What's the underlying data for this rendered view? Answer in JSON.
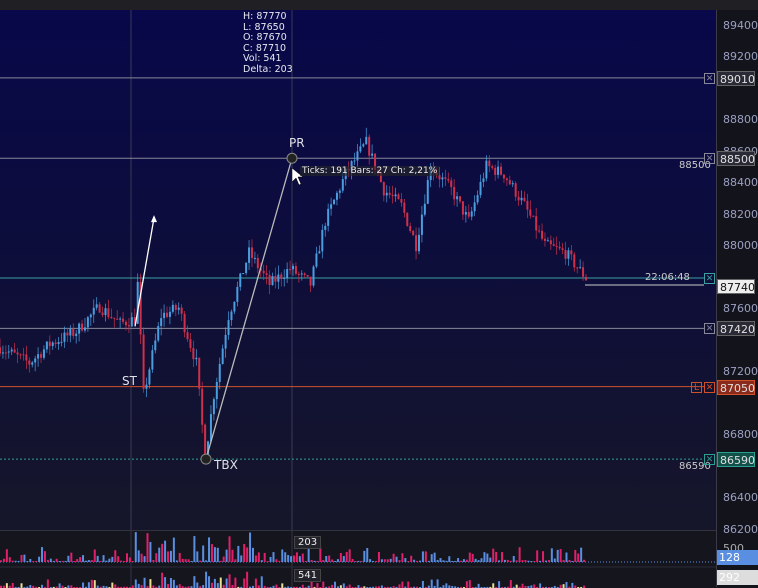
{
  "ohlc": {
    "h": "H: 87770",
    "l": "L: 87650",
    "o": "O: 87670",
    "c": "C: 87710",
    "vol": "Vol: 541",
    "delta": "Delta: 203"
  },
  "price_ticks": [
    "89400",
    "89200",
    "88800",
    "88600",
    "88400",
    "88200",
    "88000",
    "87600",
    "87200",
    "86800",
    "86400",
    "86200"
  ],
  "levels": [
    {
      "price": "89010",
      "color": "#888899",
      "style": "solid"
    },
    {
      "price": "88500",
      "color": "#888899",
      "style": "solid",
      "label": "88500"
    },
    {
      "price": "87740",
      "color": "#3aa0a0",
      "style": "solid",
      "label": "22:06:48",
      "current": true
    },
    {
      "price": "87420",
      "color": "#888899",
      "style": "solid"
    },
    {
      "price": "87050",
      "color": "#d0502a",
      "style": "solid",
      "limit": "L"
    },
    {
      "price": "86590",
      "color": "#2aa090",
      "style": "dotted",
      "label": "86590"
    }
  ],
  "annotations": {
    "pr": "PR",
    "st": "ST",
    "tbx": "TBX",
    "measure": "Ticks: 191  Bars: 27  Ch: 2,21%"
  },
  "volume": {
    "delta_tag": "203",
    "vol_tag": "541",
    "axis_max": "500",
    "delta_last": "128",
    "vol_last": "292"
  },
  "colors": {
    "up": "#4a9ee0",
    "down": "#d0304a",
    "vol_up": "#5a8ee0",
    "vol_down": "#e0206a"
  },
  "chart_data": {
    "type": "candlestick",
    "ylim": [
      86200,
      89400
    ],
    "price_path": [
      [
        0,
        87300
      ],
      [
        10,
        87200
      ],
      [
        17,
        87320
      ],
      [
        26,
        87400
      ],
      [
        34,
        87560
      ],
      [
        41,
        87450
      ],
      [
        46,
        87480
      ],
      [
        47,
        87700
      ],
      [
        49,
        87000
      ],
      [
        55,
        87500
      ],
      [
        61,
        87550
      ],
      [
        67,
        87200
      ],
      [
        70,
        86600
      ],
      [
        73,
        87000
      ],
      [
        78,
        87500
      ],
      [
        85,
        87900
      ],
      [
        92,
        87700
      ],
      [
        99,
        87800
      ],
      [
        106,
        87700
      ],
      [
        111,
        88100
      ],
      [
        118,
        88400
      ],
      [
        125,
        88600
      ],
      [
        131,
        88300
      ],
      [
        137,
        88200
      ],
      [
        142,
        87950
      ],
      [
        147,
        88450
      ],
      [
        154,
        88300
      ],
      [
        160,
        88100
      ],
      [
        166,
        88450
      ],
      [
        172,
        88400
      ],
      [
        179,
        88200
      ],
      [
        186,
        87950
      ],
      [
        193,
        87900
      ],
      [
        200,
        87740
      ]
    ]
  }
}
